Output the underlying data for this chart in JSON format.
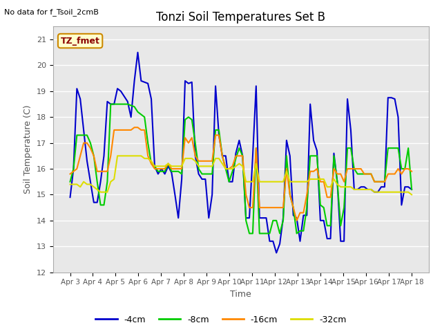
{
  "title": "Tonzi Soil Temperatures Set B",
  "no_data_text": "No data for f_Tsoil_2cmB",
  "legend_label_text": "TZ_fmet",
  "xlabel": "Time",
  "ylabel": "Soil Temperature (C)",
  "ylim": [
    12.0,
    21.5
  ],
  "yticks": [
    12.0,
    13.0,
    14.0,
    15.0,
    16.0,
    17.0,
    18.0,
    19.0,
    20.0,
    21.0
  ],
  "xtick_labels": [
    "Apr 3",
    "Apr 4",
    "Apr 5",
    "Apr 6",
    "Apr 7",
    "Apr 8",
    "Apr 9",
    "Apr 10",
    "Apr 11",
    "Apr 12",
    "Apr 13",
    "Apr 14",
    "Apr 15",
    "Apr 16",
    "Apr 17",
    "Apr 18"
  ],
  "fig_bg_color": "#ffffff",
  "plot_bg_color": "#e8e8e8",
  "grid_color": "#ffffff",
  "line_colors": {
    "-4cm": "#0000cc",
    "-8cm": "#00cc00",
    "-16cm": "#ff8800",
    "-32cm": "#dddd00"
  },
  "line_width": 1.5,
  "series": {
    "-4cm": [
      14.9,
      16.0,
      19.1,
      18.7,
      17.5,
      16.3,
      15.5,
      14.7,
      14.7,
      15.5,
      16.5,
      18.6,
      18.5,
      18.5,
      19.1,
      19.0,
      18.8,
      18.6,
      18.0,
      19.4,
      20.5,
      19.4,
      19.35,
      19.3,
      18.7,
      16.1,
      15.8,
      16.0,
      15.8,
      16.1,
      15.85,
      15.0,
      14.1,
      15.6,
      19.4,
      19.3,
      19.35,
      16.5,
      15.8,
      15.6,
      15.6,
      14.1,
      15.0,
      19.2,
      17.3,
      16.5,
      16.5,
      15.5,
      15.5,
      16.6,
      17.1,
      16.5,
      14.1,
      14.1,
      16.5,
      19.2,
      14.1,
      14.1,
      14.1,
      13.2,
      13.2,
      12.75,
      13.1,
      14.1,
      17.1,
      16.5,
      14.2,
      14.1,
      13.2,
      14.2,
      14.2,
      18.5,
      17.1,
      16.7,
      14.0,
      14.0,
      13.3,
      13.3,
      16.6,
      15.5,
      13.2,
      13.2,
      18.7,
      17.5,
      15.2,
      15.2,
      15.3,
      15.3,
      15.2,
      15.2,
      15.1,
      15.1,
      15.3,
      15.3,
      18.75,
      18.75,
      18.7,
      18.0,
      14.6,
      15.3,
      15.3,
      15.2
    ],
    "-8cm": [
      15.5,
      16.0,
      17.3,
      17.3,
      17.3,
      17.3,
      17.0,
      16.5,
      15.5,
      14.6,
      14.6,
      15.5,
      18.5,
      18.5,
      18.5,
      18.5,
      18.5,
      18.5,
      18.45,
      18.4,
      18.2,
      18.1,
      18.0,
      17.0,
      16.2,
      16.1,
      15.9,
      15.9,
      15.9,
      16.2,
      15.9,
      15.9,
      15.9,
      15.8,
      17.9,
      18.0,
      17.9,
      17.0,
      16.0,
      15.8,
      15.8,
      15.8,
      15.8,
      17.5,
      17.5,
      16.5,
      16.0,
      15.5,
      15.9,
      16.4,
      16.8,
      16.5,
      14.0,
      13.5,
      13.5,
      16.8,
      13.5,
      13.5,
      13.5,
      13.5,
      14.0,
      14.0,
      13.5,
      14.0,
      16.5,
      15.0,
      14.5,
      13.5,
      13.6,
      13.6,
      14.5,
      16.5,
      16.5,
      16.5,
      14.6,
      14.5,
      13.8,
      13.8,
      16.5,
      15.5,
      13.8,
      14.5,
      16.8,
      16.8,
      16.0,
      15.8,
      15.8,
      15.8,
      15.8,
      15.8,
      15.5,
      15.5,
      15.5,
      15.5,
      16.8,
      16.8,
      16.8,
      16.8,
      16.0,
      16.0,
      16.8,
      15.2
    ],
    "-16cm": [
      15.8,
      15.9,
      16.0,
      16.5,
      17.0,
      17.0,
      16.8,
      16.5,
      15.9,
      15.9,
      15.9,
      15.9,
      16.5,
      17.5,
      17.5,
      17.5,
      17.5,
      17.5,
      17.5,
      17.6,
      17.6,
      17.5,
      17.5,
      16.5,
      16.2,
      16.0,
      16.0,
      16.0,
      16.0,
      16.2,
      16.0,
      16.0,
      16.0,
      16.0,
      17.2,
      17.0,
      17.2,
      16.5,
      16.3,
      16.3,
      16.3,
      16.3,
      16.3,
      17.3,
      17.3,
      16.5,
      16.0,
      16.0,
      16.1,
      16.5,
      16.5,
      16.5,
      15.0,
      14.5,
      14.5,
      16.8,
      14.5,
      14.5,
      14.5,
      14.5,
      14.5,
      14.5,
      14.5,
      14.5,
      16.0,
      15.0,
      14.5,
      14.0,
      14.3,
      14.3,
      15.0,
      15.9,
      15.9,
      16.0,
      15.5,
      15.5,
      14.9,
      14.9,
      16.0,
      15.8,
      15.8,
      15.5,
      16.0,
      16.0,
      16.0,
      16.0,
      16.0,
      15.8,
      15.8,
      15.8,
      15.5,
      15.5,
      15.5,
      15.5,
      15.8,
      15.8,
      15.8,
      16.0,
      15.8,
      16.0,
      16.0,
      15.9
    ],
    "-32cm": [
      15.4,
      15.4,
      15.4,
      15.3,
      15.5,
      15.4,
      15.4,
      15.3,
      15.2,
      15.1,
      15.1,
      15.1,
      15.5,
      15.6,
      16.5,
      16.5,
      16.5,
      16.5,
      16.5,
      16.5,
      16.5,
      16.5,
      16.4,
      16.4,
      16.3,
      16.1,
      16.1,
      16.1,
      16.1,
      16.2,
      16.1,
      16.1,
      16.1,
      16.1,
      16.4,
      16.4,
      16.4,
      16.3,
      16.1,
      16.1,
      16.1,
      16.1,
      16.1,
      16.4,
      16.4,
      16.2,
      16.0,
      16.0,
      16.0,
      16.1,
      16.2,
      16.1,
      15.5,
      15.5,
      15.5,
      16.2,
      15.5,
      15.5,
      15.5,
      15.5,
      15.5,
      15.5,
      15.5,
      15.5,
      15.9,
      15.5,
      15.5,
      15.5,
      15.5,
      15.5,
      15.5,
      15.6,
      15.6,
      15.6,
      15.6,
      15.6,
      15.3,
      15.3,
      15.6,
      15.4,
      15.3,
      15.3,
      15.3,
      15.3,
      15.2,
      15.2,
      15.2,
      15.2,
      15.2,
      15.2,
      15.1,
      15.1,
      15.1,
      15.1,
      15.1,
      15.1,
      15.1,
      15.1,
      15.1,
      15.1,
      15.1,
      15.0
    ]
  }
}
